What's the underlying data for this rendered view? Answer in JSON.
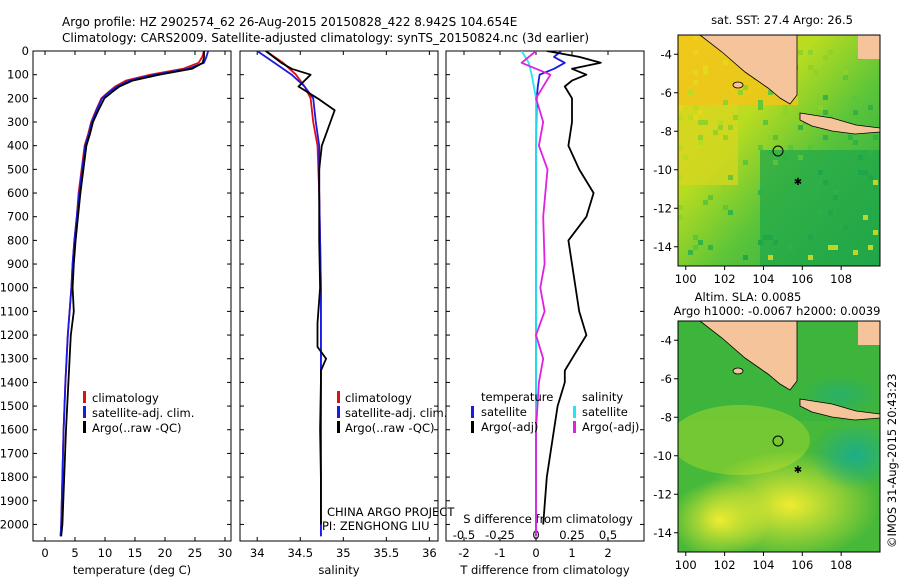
{
  "header": {
    "line1": "Argo profile: HZ 2902574_62 26-Aug-2015 20150828_422 8.942S 104.654E",
    "line2": "Climatology: CARS2009. Satellite-adjusted climatology: synTS_20150824.nc (3d earlier)"
  },
  "colors": {
    "climatology": "#e01010",
    "satellite": "#1a1ae6",
    "argo": "#000000",
    "sal_satellite": "#20e8f0",
    "sal_argo": "#e020e0",
    "land": "#f5c49a"
  },
  "depth_ticks": [
    "0",
    "100",
    "200",
    "300",
    "400",
    "500",
    "600",
    "700",
    "800",
    "900",
    "1000",
    "1100",
    "1200",
    "1300",
    "1400",
    "1500",
    "1600",
    "1700",
    "1800",
    "1900",
    "2000"
  ],
  "panels": {
    "temperature": {
      "xlabel": "temperature (deg C)",
      "xticks": [
        "0",
        "5",
        "10",
        "15",
        "20",
        "25",
        "30"
      ],
      "legend": [
        "climatology",
        "satellite-adj. clim.",
        "Argo(..raw -QC)"
      ]
    },
    "salinity": {
      "xlabel": "salinity",
      "xticks": [
        "34",
        "34.5",
        "35",
        "35.5",
        "36"
      ],
      "legend": [
        "climatology",
        "satellite-adj. clim.",
        "Argo(..raw -QC)"
      ],
      "credit1": "CHINA ARGO PROJECT",
      "credit2": "PI: ZENGHONG LIU"
    },
    "difference": {
      "t_label": "T difference from climatology",
      "s_label": "S difference from climatology",
      "t_ticks": [
        "-2",
        "-1",
        "0",
        "1",
        "2"
      ],
      "s_ticks": [
        "-0.5",
        "-0.25",
        "0",
        "0.25",
        "0.5"
      ],
      "legend_temp_title": "temperature",
      "legend_sal_title": "salinity",
      "legend_temp": [
        "satellite",
        "Argo(-adj)"
      ],
      "legend_sal": [
        "satellite",
        "Argo(-adj)"
      ]
    }
  },
  "maps": {
    "sst_title": "sat. SST: 27.4  Argo: 26.5",
    "sla_title1": "Altim. SLA: 0.0085",
    "sla_title2": "Argo h1000: -0.0067  h2000: 0.0039",
    "yticks": [
      "-4",
      "-6",
      "-8",
      "-10",
      "-12",
      "-14"
    ],
    "xticks": [
      "100",
      "102",
      "104",
      "106",
      "108"
    ]
  },
  "footer": "©IMOS 31-Aug-2015 20:43:23",
  "chart_data": [
    {
      "type": "line",
      "title": "",
      "xlabel": "temperature (deg C)",
      "ylabel": "",
      "xlim": [
        -2,
        31
      ],
      "ylim": [
        2070,
        0
      ],
      "series": [
        {
          "name": "climatology",
          "x": [
            26.5,
            26.2,
            25.6,
            23.0,
            17.5,
            13.5,
            11.7,
            10.5,
            9.4,
            8.5,
            7.7,
            7.2,
            6.6,
            6.1,
            5.6,
            5.3,
            4.9,
            4.6,
            4.4,
            3.8,
            3.4,
            3.1,
            2.9,
            2.7,
            2.6
          ],
          "y": [
            0,
            25,
            50,
            75,
            100,
            125,
            150,
            175,
            200,
            250,
            300,
            350,
            400,
            500,
            600,
            700,
            800,
            900,
            1000,
            1200,
            1400,
            1600,
            1800,
            2000,
            2050
          ]
        },
        {
          "name": "satellite-adj. clim.",
          "x": [
            27.2,
            26.9,
            26.5,
            23.8,
            18.2,
            14.0,
            12.0,
            10.6,
            9.5,
            8.6,
            7.8,
            7.3,
            6.7,
            6.2,
            5.7,
            5.3,
            4.9,
            4.6,
            4.4,
            3.8,
            3.4,
            3.1,
            2.9,
            2.7,
            2.6
          ],
          "y": [
            0,
            25,
            50,
            75,
            100,
            125,
            150,
            175,
            200,
            250,
            300,
            350,
            400,
            500,
            600,
            700,
            800,
            900,
            1000,
            1200,
            1400,
            1600,
            1800,
            2000,
            2050
          ]
        },
        {
          "name": "Argo(..raw -QC)",
          "x": [
            26.5,
            26.5,
            26.3,
            24.5,
            19.0,
            14.6,
            12.4,
            11.1,
            9.9,
            8.9,
            8.0,
            7.5,
            6.9,
            6.4,
            5.9,
            5.5,
            5.1,
            4.8,
            4.6,
            4.8,
            4.3,
            3.9,
            3.5,
            3.2,
            2.9,
            2.7
          ],
          "y": [
            0,
            25,
            50,
            75,
            100,
            125,
            150,
            175,
            200,
            250,
            300,
            350,
            400,
            500,
            600,
            700,
            800,
            900,
            1000,
            1100,
            1200,
            1400,
            1600,
            1800,
            2000,
            2050
          ]
        }
      ]
    },
    {
      "type": "line",
      "title": "",
      "xlabel": "salinity",
      "ylabel": "",
      "xlim": [
        33.8,
        36.1
      ],
      "ylim": [
        2070,
        0
      ],
      "series": [
        {
          "name": "climatology",
          "x": [
            34.1,
            34.3,
            34.45,
            34.55,
            34.62,
            34.65,
            34.7,
            34.72,
            34.73,
            34.74,
            34.74,
            34.74,
            34.74,
            34.74,
            34.74
          ],
          "y": [
            0,
            50,
            100,
            150,
            200,
            300,
            400,
            600,
            800,
            1000,
            1200,
            1400,
            1600,
            1800,
            2050
          ]
        },
        {
          "name": "satellite-adj. clim.",
          "x": [
            34.0,
            34.2,
            34.4,
            34.55,
            34.65,
            34.68,
            34.72,
            34.72,
            34.73,
            34.74,
            34.74,
            34.74,
            34.74,
            34.74,
            34.74
          ],
          "y": [
            0,
            50,
            100,
            150,
            200,
            300,
            400,
            600,
            800,
            1000,
            1200,
            1400,
            1600,
            1800,
            2050
          ]
        },
        {
          "name": "Argo(..raw -QC)",
          "x": [
            34.1,
            34.28,
            34.4,
            34.62,
            34.55,
            34.48,
            34.7,
            34.9,
            34.85,
            34.8,
            34.75,
            34.72,
            34.72,
            34.72,
            34.73,
            34.7,
            34.7,
            34.8,
            34.74,
            34.74,
            34.73,
            34.74,
            34.74
          ],
          "y": [
            0,
            50,
            75,
            100,
            125,
            150,
            200,
            250,
            300,
            350,
            400,
            500,
            600,
            800,
            1000,
            1150,
            1250,
            1300,
            1350,
            1400,
            1600,
            1800,
            2000
          ]
        }
      ]
    },
    {
      "type": "line",
      "title": "",
      "xlabel": "T difference from climatology",
      "ylabel": "",
      "xlim": [
        -2.5,
        3
      ],
      "ylim": [
        2070,
        0
      ],
      "series": [
        {
          "name": "satellite",
          "x": [
            0.7,
            0.5,
            0.8,
            0.5,
            0.1,
            0.05,
            0.02,
            0,
            0,
            0,
            0,
            0
          ],
          "y": [
            0,
            25,
            50,
            75,
            100,
            150,
            200,
            400,
            800,
            1200,
            1600,
            2050
          ]
        },
        {
          "name": "Argo(-adj)",
          "x": [
            0.3,
            1.2,
            1.8,
            1.0,
            1.4,
            1.0,
            0.8,
            0.9,
            1.0,
            1.0,
            0.9,
            1.2,
            1.6,
            1.4,
            0.9,
            1.0,
            1.1,
            1.2,
            1.4,
            1.0,
            0.8,
            0.8,
            0.6,
            0.5,
            0.4,
            0.3,
            0.2
          ],
          "y": [
            0,
            25,
            50,
            75,
            100,
            125,
            150,
            175,
            200,
            300,
            400,
            500,
            600,
            700,
            800,
            900,
            1000,
            1100,
            1200,
            1300,
            1350,
            1400,
            1500,
            1600,
            1700,
            1800,
            2000
          ]
        }
      ]
    },
    {
      "type": "line",
      "title": "",
      "xlabel": "S difference from climatology",
      "ylabel": "",
      "xlim": [
        -0.625,
        0.75
      ],
      "ylim": [
        2070,
        0
      ],
      "series": [
        {
          "name": "satellite",
          "x": [
            -0.1,
            -0.05,
            -0.03,
            0,
            0,
            0,
            0,
            0
          ],
          "y": [
            0,
            50,
            100,
            200,
            400,
            800,
            1400,
            2050
          ]
        },
        {
          "name": "Argo(-adj)",
          "x": [
            0,
            -0.1,
            0.1,
            0,
            0.05,
            0.02,
            0.08,
            0.05,
            0.06,
            0.03,
            0.06,
            0.0,
            0.05,
            0.02,
            0.0,
            0.0,
            0.0
          ],
          "y": [
            0,
            50,
            100,
            200,
            300,
            400,
            500,
            700,
            900,
            1000,
            1100,
            1200,
            1300,
            1400,
            1600,
            1800,
            2050
          ]
        }
      ]
    },
    {
      "type": "heatmap",
      "title": "sat. SST: 27.4  Argo: 26.5",
      "xlim": [
        99.6,
        110
      ],
      "ylim": [
        -15,
        -3
      ],
      "argo_position": [
        104.654,
        -8.942
      ]
    },
    {
      "type": "heatmap",
      "title": "Altim. SLA: 0.0085",
      "xlim": [
        99.6,
        110
      ],
      "ylim": [
        -15,
        -3
      ],
      "argo_position": [
        104.654,
        -8.942
      ]
    }
  ]
}
